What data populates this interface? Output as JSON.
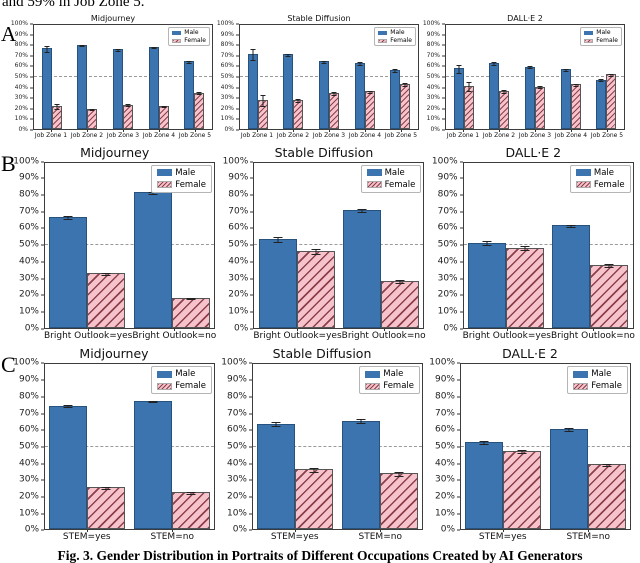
{
  "page": {
    "top_text": "and 59% in Job Zone 5.",
    "caption": "Fig. 3. Gender Distribution in Portraits of Different Occupations Created by AI Generators"
  },
  "colors": {
    "male_bar": "#3b74ae",
    "male_edge": "#27527d",
    "female_fill": "#f6c3cd",
    "female_hatch": "#8b4049",
    "female_edge": "#555555",
    "reference_line": "#9a9a9a",
    "axis": "#333333"
  },
  "rows": [
    {
      "label": "A",
      "chart_indexes": [
        0,
        1,
        2
      ]
    },
    {
      "label": "B",
      "chart_indexes": [
        3,
        4,
        5
      ]
    },
    {
      "label": "C",
      "chart_indexes": [
        6,
        7,
        8
      ]
    }
  ],
  "chart_data": [
    {
      "type": "bar",
      "title": "Midjourney",
      "panel": "A",
      "categories": [
        "Job Zone 1",
        "Job Zone 2",
        "Job Zone 3",
        "Job Zone 4",
        "Job Zone 5"
      ],
      "series": [
        {
          "name": "Male",
          "values": [
            77.5,
            81,
            76.5,
            78.5,
            65
          ],
          "errors": [
            3,
            1,
            1,
            1,
            1.5
          ]
        },
        {
          "name": "Female",
          "values": [
            22,
            19,
            23.5,
            22,
            35
          ],
          "errors": [
            3,
            1,
            1.5,
            1,
            1.5
          ]
        }
      ],
      "ylim": [
        0,
        100
      ],
      "ytick_step": 10,
      "ytick_suffix": "%",
      "reference_line": 50,
      "legend_position": "top-right",
      "grid": false
    },
    {
      "type": "bar",
      "title": "Stable Diffusion",
      "panel": "A",
      "categories": [
        "Job Zone 1",
        "Job Zone 2",
        "Job Zone 3",
        "Job Zone 4",
        "Job Zone 5"
      ],
      "series": [
        {
          "name": "Male",
          "values": [
            72,
            72,
            65,
            63.5,
            57
          ],
          "errors": [
            5.5,
            1.5,
            1.5,
            1.5,
            2
          ]
        },
        {
          "name": "Female",
          "values": [
            28,
            27.5,
            34.5,
            36.5,
            43.5
          ],
          "errors": [
            5.5,
            2,
            2,
            1.5,
            2
          ]
        }
      ],
      "ylim": [
        0,
        100
      ],
      "ytick_step": 10,
      "ytick_suffix": "%",
      "reference_line": 50,
      "legend_position": "top-right",
      "grid": false
    },
    {
      "type": "bar",
      "title": "DALL·E 2",
      "panel": "A",
      "categories": [
        "Job Zone 1",
        "Job Zone 2",
        "Job Zone 3",
        "Job Zone 4",
        "Job Zone 5"
      ],
      "series": [
        {
          "name": "Male",
          "values": [
            58.5,
            63.5,
            60,
            57.5,
            47.5
          ],
          "errors": [
            4.5,
            1.5,
            1.5,
            1.5,
            1.5
          ]
        },
        {
          "name": "Female",
          "values": [
            41.5,
            36.5,
            40.5,
            43,
            52.5
          ],
          "errors": [
            4.5,
            2,
            1.5,
            1.5,
            1.5
          ]
        }
      ],
      "ylim": [
        0,
        100
      ],
      "ytick_step": 10,
      "ytick_suffix": "%",
      "reference_line": 50,
      "legend_position": "top-right",
      "grid": false
    },
    {
      "type": "bar",
      "title": "Midjourney",
      "panel": "B",
      "categories": [
        "Bright Outlook=yes",
        "Bright Outlook=no"
      ],
      "series": [
        {
          "name": "Male",
          "values": [
            67,
            82
          ],
          "errors": [
            1,
            0.8
          ]
        },
        {
          "name": "Female",
          "values": [
            33,
            18
          ],
          "errors": [
            1,
            0.8
          ]
        }
      ],
      "ylim": [
        0,
        100
      ],
      "ytick_step": 10,
      "ytick_suffix": "%",
      "reference_line": 50,
      "legend_position": "top-right",
      "grid": false
    },
    {
      "type": "bar",
      "title": "Stable Diffusion",
      "panel": "B",
      "categories": [
        "Bright Outlook=yes",
        "Bright Outlook=no"
      ],
      "series": [
        {
          "name": "Male",
          "values": [
            53.5,
            71.5
          ],
          "errors": [
            1.8,
            1.2
          ]
        },
        {
          "name": "Female",
          "values": [
            46.5,
            28.5
          ],
          "errors": [
            1.8,
            1.2
          ]
        }
      ],
      "ylim": [
        0,
        100
      ],
      "ytick_step": 10,
      "ytick_suffix": "%",
      "reference_line": 50,
      "legend_position": "top-right",
      "grid": false
    },
    {
      "type": "bar",
      "title": "DALL·E 2",
      "panel": "B",
      "categories": [
        "Bright Outlook=yes",
        "Bright Outlook=no"
      ],
      "series": [
        {
          "name": "Male",
          "values": [
            51.5,
            62
          ],
          "errors": [
            1.3,
            1
          ]
        },
        {
          "name": "Female",
          "values": [
            48.5,
            38
          ],
          "errors": [
            1.3,
            1
          ]
        }
      ],
      "ylim": [
        0,
        100
      ],
      "ytick_step": 10,
      "ytick_suffix": "%",
      "reference_line": 50,
      "legend_position": "top-right",
      "grid": false
    },
    {
      "type": "bar",
      "title": "Midjourney",
      "panel": "C",
      "categories": [
        "STEM=yes",
        "STEM=no"
      ],
      "series": [
        {
          "name": "Male",
          "values": [
            75,
            78
          ],
          "errors": [
            0.8,
            0.7
          ]
        },
        {
          "name": "Female",
          "values": [
            25.5,
            22.5
          ],
          "errors": [
            1,
            0.7
          ]
        }
      ],
      "ylim": [
        0,
        100
      ],
      "ytick_step": 10,
      "ytick_suffix": "%",
      "reference_line": 50,
      "legend_position": "top-right",
      "grid": false
    },
    {
      "type": "bar",
      "title": "Stable Diffusion",
      "panel": "C",
      "categories": [
        "STEM=yes",
        "STEM=no"
      ],
      "series": [
        {
          "name": "Male",
          "values": [
            64,
            66
          ],
          "errors": [
            1.5,
            1.3
          ]
        },
        {
          "name": "Female",
          "values": [
            36.5,
            34
          ],
          "errors": [
            1.6,
            1.3
          ]
        }
      ],
      "ylim": [
        0,
        100
      ],
      "ytick_step": 10,
      "ytick_suffix": "%",
      "reference_line": 50,
      "legend_position": "top-right",
      "grid": false
    },
    {
      "type": "bar",
      "title": "DALL·E 2",
      "panel": "C",
      "categories": [
        "STEM=yes",
        "STEM=no"
      ],
      "series": [
        {
          "name": "Male",
          "values": [
            53,
            61
          ],
          "errors": [
            1.3,
            1
          ]
        },
        {
          "name": "Female",
          "values": [
            47.5,
            39.5
          ],
          "errors": [
            1.2,
            1
          ]
        }
      ],
      "ylim": [
        0,
        100
      ],
      "ytick_step": 10,
      "ytick_suffix": "%",
      "reference_line": 50,
      "legend_position": "top-right",
      "grid": false
    }
  ]
}
